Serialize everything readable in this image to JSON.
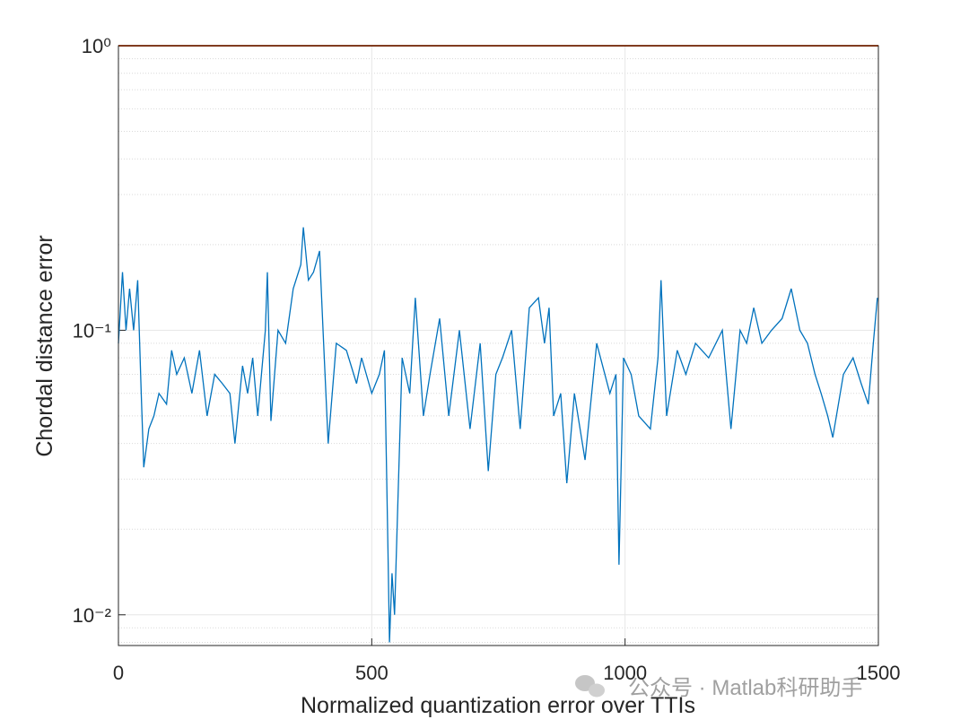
{
  "chart_data": {
    "type": "line",
    "xlabel": "Normalized quantization error over TTIs",
    "ylabel": "Chordal distance error",
    "watermark": "公众号 · Matlab科研助手",
    "xlim": [
      0,
      1500
    ],
    "xticks": [
      0,
      500,
      1000,
      1500
    ],
    "ylim": [
      0.0078,
      1
    ],
    "yticks": [
      {
        "value": 0.01,
        "label": "10⁻²"
      },
      {
        "value": 0.1,
        "label": "10⁻¹"
      },
      {
        "value": 1,
        "label": "10⁰"
      }
    ],
    "yscale": "log",
    "grid": true,
    "minor_grid": true,
    "series": [
      {
        "color": "#0072bd",
        "x": [
          0,
          8,
          15,
          22,
          30,
          38,
          45,
          50,
          60,
          70,
          80,
          95,
          105,
          115,
          130,
          145,
          160,
          175,
          190,
          205,
          220,
          230,
          245,
          255,
          265,
          275,
          290,
          294,
          301,
          315,
          330,
          345,
          360,
          365,
          375,
          385,
          397,
          405,
          414,
          430,
          450,
          470,
          480,
          500,
          515,
          525,
          532,
          535,
          540,
          545,
          560,
          575,
          586,
          602,
          615,
          634,
          652,
          673,
          694,
          714,
          730,
          745,
          758,
          776,
          793,
          811,
          829,
          841,
          850,
          859,
          873,
          885,
          900,
          921,
          944,
          970,
          982,
          988,
          997,
          1012,
          1027,
          1050,
          1065,
          1071,
          1082,
          1103,
          1120,
          1139,
          1165,
          1192,
          1209,
          1227,
          1240,
          1254,
          1270,
          1289,
          1310,
          1328,
          1345,
          1360,
          1375,
          1387,
          1400,
          1410,
          1431,
          1450,
          1466,
          1480,
          1490,
          1498
        ],
        "values": [
          0.09,
          0.16,
          0.1,
          0.14,
          0.1,
          0.15,
          0.06,
          0.033,
          0.045,
          0.05,
          0.06,
          0.055,
          0.085,
          0.07,
          0.08,
          0.06,
          0.085,
          0.05,
          0.07,
          0.065,
          0.06,
          0.04,
          0.075,
          0.06,
          0.08,
          0.05,
          0.1,
          0.16,
          0.048,
          0.1,
          0.09,
          0.14,
          0.17,
          0.23,
          0.15,
          0.16,
          0.19,
          0.09,
          0.04,
          0.09,
          0.085,
          0.065,
          0.08,
          0.06,
          0.07,
          0.085,
          0.017,
          0.008,
          0.014,
          0.01,
          0.08,
          0.06,
          0.13,
          0.05,
          0.07,
          0.11,
          0.05,
          0.1,
          0.045,
          0.09,
          0.032,
          0.07,
          0.08,
          0.1,
          0.045,
          0.12,
          0.13,
          0.09,
          0.12,
          0.05,
          0.06,
          0.029,
          0.06,
          0.035,
          0.09,
          0.06,
          0.07,
          0.015,
          0.08,
          0.07,
          0.05,
          0.045,
          0.08,
          0.15,
          0.05,
          0.085,
          0.07,
          0.09,
          0.08,
          0.1,
          0.045,
          0.1,
          0.09,
          0.12,
          0.09,
          0.1,
          0.11,
          0.14,
          0.1,
          0.09,
          0.07,
          0.06,
          0.05,
          0.042,
          0.07,
          0.08,
          0.065,
          0.055,
          0.09,
          0.13
        ]
      },
      {
        "color": "#d95319",
        "x": [
          0,
          1500
        ],
        "values": [
          1,
          1
        ]
      }
    ]
  }
}
